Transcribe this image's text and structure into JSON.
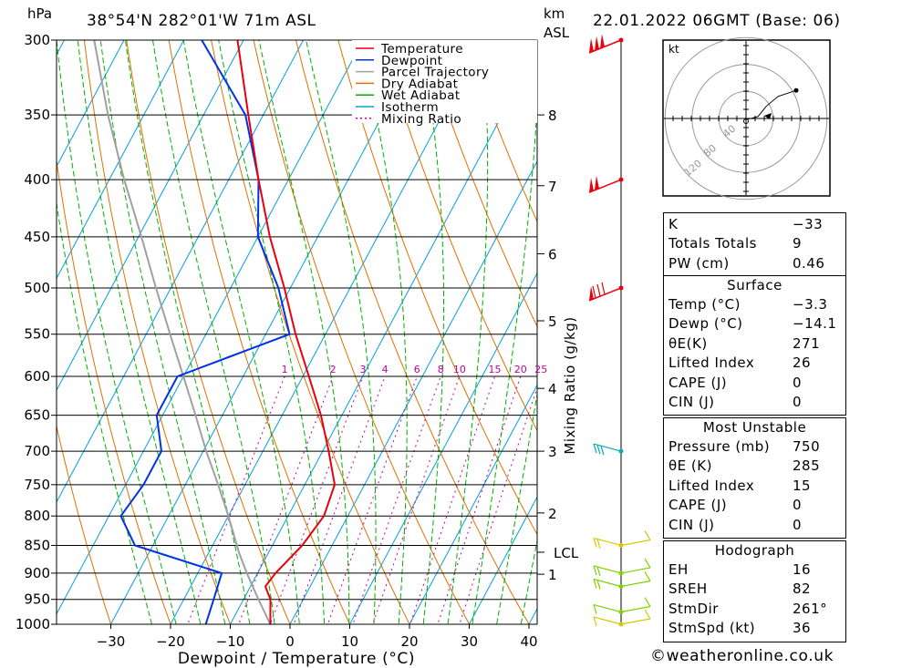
{
  "header": {
    "left_unit": "hPa",
    "location": "38°54'N  282°01'W  71m  ASL",
    "km_label_1": "km",
    "km_label_2": "ASL",
    "datetime": "22.01.2022  06GMT  (Base: 06)"
  },
  "legend": {
    "items": [
      {
        "label": "Temperature",
        "color": "#e8000b",
        "dash": ""
      },
      {
        "label": "Dewpoint",
        "color": "#0032e8",
        "dash": ""
      },
      {
        "label": "Parcel Trajectory",
        "color": "#a0a0a0",
        "dash": ""
      },
      {
        "label": "Dry Adiabat",
        "color": "#e07000",
        "dash": ""
      },
      {
        "label": "Wet Adiabat",
        "color": "#00b000",
        "dash": ""
      },
      {
        "label": "Isotherm",
        "color": "#00a0e0",
        "dash": ""
      },
      {
        "label": "Mixing Ratio",
        "color": "#c000a0",
        "dash": "2,3"
      }
    ]
  },
  "chart_data": {
    "type": "skew-t log-p",
    "xlabel": "Dewpoint / Temperature (°C)",
    "ylabel": "hPa",
    "mixing_ratio_axis_label": "Mixing Ratio (g/kg)",
    "pressure_levels": [
      300,
      350,
      400,
      450,
      500,
      550,
      600,
      650,
      700,
      750,
      800,
      850,
      900,
      950,
      1000
    ],
    "x_ticks": [
      -30,
      -20,
      -10,
      0,
      10,
      20,
      30,
      40
    ],
    "xlim": [
      -40,
      40
    ],
    "ylim": [
      1000,
      300
    ],
    "km_ticks": [
      {
        "label": "8",
        "p": 350
      },
      {
        "label": "7",
        "p": 405
      },
      {
        "label": "6",
        "p": 466
      },
      {
        "label": "5",
        "p": 535
      },
      {
        "label": "4",
        "p": 615
      },
      {
        "label": "3",
        "p": 700
      },
      {
        "label": "2",
        "p": 795
      },
      {
        "label": "LCL",
        "p": 862
      },
      {
        "label": "1",
        "p": 902
      }
    ],
    "mixing_ratio_labels": [
      "1",
      "2",
      "3",
      "4",
      "6",
      "8",
      "10",
      "15",
      "20",
      "25"
    ],
    "mixing_ratio_values": [
      1,
      2,
      3,
      4,
      6,
      8,
      10,
      15,
      20,
      25
    ],
    "temperature": [
      {
        "p": 1000,
        "t": -3.3
      },
      {
        "p": 950,
        "t": -5.5
      },
      {
        "p": 925,
        "t": -7.5
      },
      {
        "p": 900,
        "t": -7.0
      },
      {
        "p": 850,
        "t": -5.0
      },
      {
        "p": 800,
        "t": -4.0
      },
      {
        "p": 750,
        "t": -5.0
      },
      {
        "p": 700,
        "t": -9.0
      },
      {
        "p": 650,
        "t": -13.5
      },
      {
        "p": 600,
        "t": -19.0
      },
      {
        "p": 550,
        "t": -25.0
      },
      {
        "p": 500,
        "t": -31.0
      },
      {
        "p": 450,
        "t": -38.0
      },
      {
        "p": 400,
        "t": -45.0
      },
      {
        "p": 350,
        "t": -52.5
      },
      {
        "p": 300,
        "t": -61.0
      }
    ],
    "dewpoint": [
      {
        "p": 1000,
        "t": -14.1
      },
      {
        "p": 950,
        "t": -15.0
      },
      {
        "p": 900,
        "t": -16.0
      },
      {
        "p": 850,
        "t": -33.0
      },
      {
        "p": 800,
        "t": -38.0
      },
      {
        "p": 750,
        "t": -37.0
      },
      {
        "p": 700,
        "t": -37.0
      },
      {
        "p": 650,
        "t": -41.0
      },
      {
        "p": 600,
        "t": -41.0
      },
      {
        "p": 550,
        "t": -26.0
      },
      {
        "p": 500,
        "t": -32.0
      },
      {
        "p": 450,
        "t": -40.0
      },
      {
        "p": 400,
        "t": -45.0
      },
      {
        "p": 350,
        "t": -53.0
      },
      {
        "p": 300,
        "t": -67.0
      }
    ],
    "parcel": [
      {
        "p": 1000,
        "t": -3.3
      },
      {
        "p": 950,
        "t": -7.5
      },
      {
        "p": 900,
        "t": -11.8
      },
      {
        "p": 862,
        "t": -15.0
      },
      {
        "p": 800,
        "t": -20.0
      },
      {
        "p": 750,
        "t": -24.5
      },
      {
        "p": 700,
        "t": -29.5
      },
      {
        "p": 650,
        "t": -34.5
      },
      {
        "p": 600,
        "t": -40.0
      },
      {
        "p": 550,
        "t": -46.0
      },
      {
        "p": 500,
        "t": -52.5
      },
      {
        "p": 450,
        "t": -59.5
      },
      {
        "p": 400,
        "t": -67.5
      },
      {
        "p": 350,
        "t": -76.0
      },
      {
        "p": 300,
        "t": -85.0
      }
    ],
    "wind_profile": [
      {
        "p": 300,
        "color": "#e8000b",
        "shape": "triple pennant",
        "speed_kt": 150
      },
      {
        "p": 400,
        "color": "#e8000b",
        "shape": "double pennant",
        "speed_kt": 100
      },
      {
        "p": 500,
        "color": "#e8000b",
        "shape": "pennant plus barbs",
        "speed_kt": 80
      },
      {
        "p": 700,
        "color": "#00b0b0",
        "shape": "barbs",
        "speed_kt": 30
      },
      {
        "p": 850,
        "color": "#d8c800",
        "shape": "barbs",
        "speed_kt": 15
      },
      {
        "p": 900,
        "color": "#80d000",
        "shape": "barbs",
        "speed_kt": 15
      },
      {
        "p": 925,
        "color": "#80d000",
        "shape": "barbs",
        "speed_kt": 15
      },
      {
        "p": 975,
        "color": "#80d000",
        "shape": "barbs",
        "speed_kt": 10
      },
      {
        "p": 1000,
        "color": "#d8c800",
        "shape": "barbs",
        "speed_kt": 5
      }
    ],
    "hodograph": {
      "unit": "kt",
      "ring_labels": [
        "40",
        "80",
        "120"
      ],
      "points": [
        [
          -1,
          -1
        ],
        [
          5,
          0
        ],
        [
          12,
          2
        ],
        [
          20,
          12
        ],
        [
          32,
          22
        ],
        [
          50,
          28
        ]
      ]
    }
  },
  "indices": [
    {
      "label": "K",
      "value": "-33"
    },
    {
      "label": "Totals Totals",
      "value": "9"
    },
    {
      "label": "PW (cm)",
      "value": "0.46"
    }
  ],
  "surface": {
    "title": "Surface",
    "rows": [
      {
        "label": "Temp (°C)",
        "value": "-3.3"
      },
      {
        "label": "Dewp (°C)",
        "value": "-14.1"
      },
      {
        "label": "θE(K)",
        "value": "271"
      },
      {
        "label": "Lifted Index",
        "value": "26"
      },
      {
        "label": "CAPE (J)",
        "value": "0"
      },
      {
        "label": "CIN (J)",
        "value": "0"
      }
    ]
  },
  "most_unstable": {
    "title": "Most Unstable",
    "rows": [
      {
        "label": "Pressure (mb)",
        "value": "750"
      },
      {
        "label": "θE (K)",
        "value": "285"
      },
      {
        "label": "Lifted Index",
        "value": "15"
      },
      {
        "label": "CAPE (J)",
        "value": "0"
      },
      {
        "label": "CIN (J)",
        "value": "0"
      }
    ]
  },
  "hodograph_panel": {
    "title": "Hodograph",
    "rows": [
      {
        "label": "EH",
        "value": "16"
      },
      {
        "label": "SREH",
        "value": "82"
      },
      {
        "label": "StmDir",
        "value": "261°"
      },
      {
        "label": "StmSpd (kt)",
        "value": "36"
      }
    ]
  },
  "footer": {
    "credit": "©weatheronline.co.uk"
  }
}
